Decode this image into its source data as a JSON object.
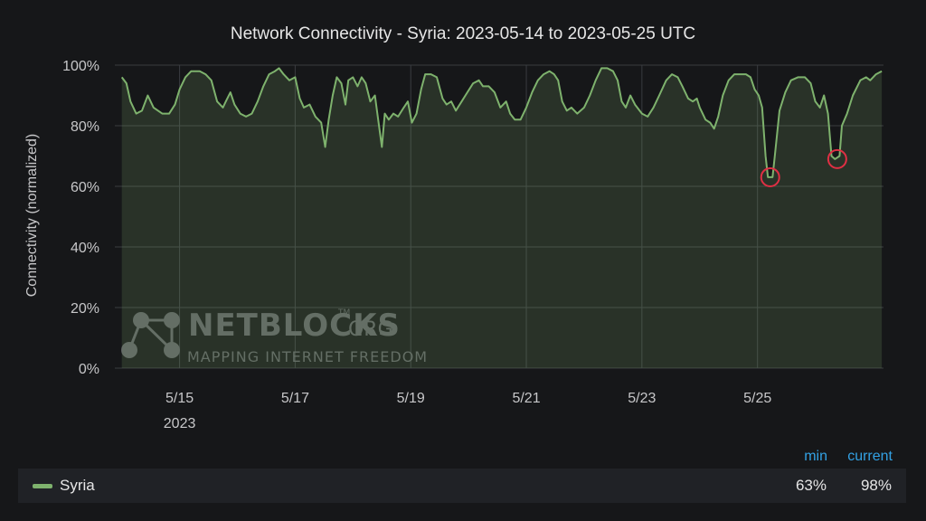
{
  "title": "Network Connectivity - Syria: 2023-05-14 to 2023-05-25 UTC",
  "watermark": {
    "brand": "NETBLOCKS",
    "brand_suffix": ".ORG",
    "trademark": "TM",
    "tagline": "MAPPING INTERNET FREEDOM"
  },
  "legend": {
    "header_min": "min",
    "header_current": "current",
    "series_name": "Syria",
    "min_value": "63%",
    "current_value": "98%"
  },
  "colors": {
    "series_line": "#7eb26d",
    "series_fill": "#7eb26d",
    "highlight": "#e02f44",
    "legend_header": "#33a2e5",
    "background": "#161719"
  },
  "chart_data": {
    "type": "area",
    "ylabel": "Connectivity (normalized)",
    "xlabel": "",
    "ylim": [
      0,
      100
    ],
    "yticks": [
      "0%",
      "20%",
      "40%",
      "60%",
      "80%",
      "100%"
    ],
    "xticks": [
      "5/15",
      "5/17",
      "5/19",
      "5/21",
      "5/23",
      "5/25"
    ],
    "x_year_label": "2023",
    "grid": true,
    "x_unit": "days since 2023-05-14 00:00 UTC",
    "series": [
      {
        "name": "Syria",
        "points": [
          [
            0.0,
            96
          ],
          [
            0.08,
            94
          ],
          [
            0.15,
            88
          ],
          [
            0.25,
            84
          ],
          [
            0.35,
            85
          ],
          [
            0.45,
            90
          ],
          [
            0.55,
            86
          ],
          [
            0.7,
            84
          ],
          [
            0.82,
            84
          ],
          [
            0.92,
            87
          ],
          [
            1.0,
            92
          ],
          [
            1.1,
            96
          ],
          [
            1.2,
            98
          ],
          [
            1.35,
            98
          ],
          [
            1.45,
            97
          ],
          [
            1.55,
            95
          ],
          [
            1.65,
            88
          ],
          [
            1.75,
            86
          ],
          [
            1.8,
            88
          ],
          [
            1.88,
            91
          ],
          [
            1.95,
            87
          ],
          [
            2.05,
            84
          ],
          [
            2.15,
            83
          ],
          [
            2.25,
            84
          ],
          [
            2.35,
            88
          ],
          [
            2.45,
            93
          ],
          [
            2.55,
            97
          ],
          [
            2.65,
            98
          ],
          [
            2.72,
            99
          ],
          [
            2.8,
            97
          ],
          [
            2.9,
            95
          ],
          [
            3.0,
            96
          ],
          [
            3.08,
            89
          ],
          [
            3.15,
            86
          ],
          [
            3.25,
            87
          ],
          [
            3.35,
            83
          ],
          [
            3.45,
            81
          ],
          [
            3.52,
            73
          ],
          [
            3.58,
            82
          ],
          [
            3.65,
            90
          ],
          [
            3.72,
            96
          ],
          [
            3.8,
            94
          ],
          [
            3.87,
            87
          ],
          [
            3.92,
            95
          ],
          [
            4.0,
            96
          ],
          [
            4.08,
            93
          ],
          [
            4.15,
            96
          ],
          [
            4.22,
            94
          ],
          [
            4.3,
            88
          ],
          [
            4.38,
            90
          ],
          [
            4.45,
            80
          ],
          [
            4.5,
            73
          ],
          [
            4.55,
            84
          ],
          [
            4.62,
            82
          ],
          [
            4.7,
            84
          ],
          [
            4.78,
            83
          ],
          [
            4.88,
            86
          ],
          [
            4.95,
            88
          ],
          [
            5.02,
            81
          ],
          [
            5.1,
            84
          ],
          [
            5.18,
            92
          ],
          [
            5.25,
            97
          ],
          [
            5.35,
            97
          ],
          [
            5.45,
            96
          ],
          [
            5.55,
            89
          ],
          [
            5.62,
            87
          ],
          [
            5.7,
            88
          ],
          [
            5.78,
            85
          ],
          [
            5.88,
            88
          ],
          [
            5.98,
            91
          ],
          [
            6.08,
            94
          ],
          [
            6.18,
            95
          ],
          [
            6.25,
            93
          ],
          [
            6.35,
            93
          ],
          [
            6.45,
            91
          ],
          [
            6.55,
            86
          ],
          [
            6.65,
            88
          ],
          [
            6.72,
            84
          ],
          [
            6.8,
            82
          ],
          [
            6.9,
            82
          ],
          [
            7.0,
            86
          ],
          [
            7.1,
            91
          ],
          [
            7.2,
            95
          ],
          [
            7.3,
            97
          ],
          [
            7.4,
            98
          ],
          [
            7.48,
            97
          ],
          [
            7.55,
            95
          ],
          [
            7.62,
            88
          ],
          [
            7.7,
            85
          ],
          [
            7.78,
            86
          ],
          [
            7.88,
            84
          ],
          [
            8.0,
            86
          ],
          [
            8.1,
            90
          ],
          [
            8.2,
            95
          ],
          [
            8.3,
            99
          ],
          [
            8.4,
            99
          ],
          [
            8.5,
            98
          ],
          [
            8.58,
            95
          ],
          [
            8.65,
            88
          ],
          [
            8.72,
            86
          ],
          [
            8.8,
            90
          ],
          [
            8.88,
            87
          ],
          [
            9.0,
            84
          ],
          [
            9.1,
            83
          ],
          [
            9.2,
            86
          ],
          [
            9.3,
            90
          ],
          [
            9.42,
            95
          ],
          [
            9.52,
            97
          ],
          [
            9.62,
            96
          ],
          [
            9.7,
            93
          ],
          [
            9.8,
            89
          ],
          [
            9.88,
            88
          ],
          [
            9.95,
            89
          ],
          [
            10.0,
            86
          ],
          [
            10.1,
            82
          ],
          [
            10.18,
            81
          ],
          [
            10.25,
            79
          ],
          [
            10.32,
            83
          ],
          [
            10.4,
            90
          ],
          [
            10.5,
            95
          ],
          [
            10.6,
            97
          ],
          [
            10.7,
            97
          ],
          [
            10.8,
            97
          ],
          [
            10.88,
            96
          ],
          [
            10.95,
            92
          ],
          [
            11.02,
            90
          ],
          [
            11.08,
            86
          ],
          [
            11.14,
            70
          ],
          [
            11.18,
            63
          ],
          [
            11.26,
            63
          ],
          [
            11.3,
            70
          ],
          [
            11.38,
            85
          ],
          [
            11.48,
            91
          ],
          [
            11.58,
            95
          ],
          [
            11.7,
            96
          ],
          [
            11.82,
            96
          ],
          [
            11.92,
            94
          ],
          [
            12.0,
            88
          ],
          [
            12.08,
            86
          ],
          [
            12.15,
            90
          ],
          [
            12.22,
            84
          ],
          [
            12.28,
            70
          ],
          [
            12.34,
            69
          ],
          [
            12.42,
            70
          ],
          [
            12.46,
            80
          ],
          [
            12.55,
            84
          ],
          [
            12.65,
            90
          ],
          [
            12.78,
            95
          ],
          [
            12.88,
            96
          ],
          [
            12.95,
            95
          ],
          [
            13.05,
            97
          ],
          [
            13.15,
            98
          ]
        ]
      }
    ],
    "xlim": [
      -0.12,
      13.18
    ],
    "annotations": [
      {
        "type": "circle",
        "label": "",
        "x": 11.22,
        "y": 63
      },
      {
        "type": "circle",
        "label": "",
        "x": 12.38,
        "y": 69
      }
    ]
  }
}
